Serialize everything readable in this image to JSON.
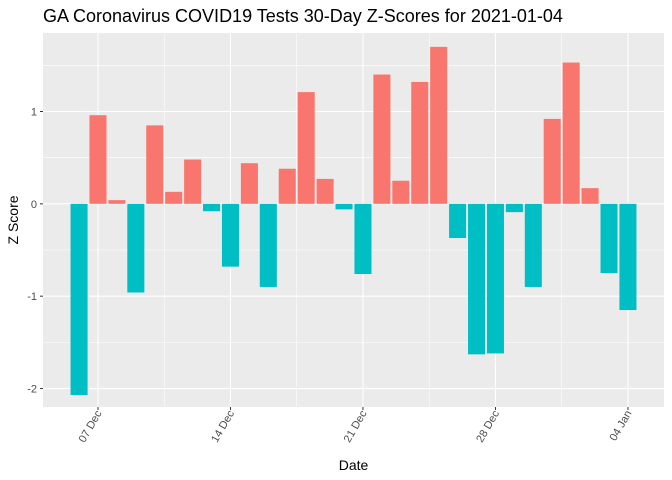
{
  "chart_data": {
    "type": "bar",
    "title": "GA Coronavirus COVID19 Tests 30-Day Z-Scores for 2021-01-04",
    "xlabel": "Date",
    "ylabel": "Z Score",
    "x": [
      "2020-12-06",
      "2020-12-07",
      "2020-12-08",
      "2020-12-09",
      "2020-12-10",
      "2020-12-11",
      "2020-12-12",
      "2020-12-13",
      "2020-12-14",
      "2020-12-15",
      "2020-12-16",
      "2020-12-17",
      "2020-12-18",
      "2020-12-19",
      "2020-12-20",
      "2020-12-21",
      "2020-12-22",
      "2020-12-23",
      "2020-12-24",
      "2020-12-25",
      "2020-12-26",
      "2020-12-27",
      "2020-12-28",
      "2020-12-29",
      "2020-12-30",
      "2020-12-31",
      "2021-01-01",
      "2021-01-02",
      "2021-01-03",
      "2021-01-04"
    ],
    "values": [
      -2.07,
      0.96,
      0.04,
      -0.96,
      0.85,
      0.13,
      0.48,
      -0.08,
      -0.68,
      0.44,
      -0.9,
      0.38,
      1.21,
      0.27,
      -0.06,
      -0.76,
      1.4,
      0.25,
      1.32,
      1.7,
      -0.37,
      -1.63,
      -1.62,
      -0.09,
      -0.9,
      0.92,
      1.53,
      0.17,
      -0.75,
      -1.15
    ],
    "x_ticks": [
      "07 Dec",
      "14 Dec",
      "21 Dec",
      "28 Dec",
      "04 Jan"
    ],
    "x_tick_dates": [
      "2020-12-07",
      "2020-12-14",
      "2020-12-21",
      "2020-12-28",
      "2021-01-04"
    ],
    "y_ticks": [
      "-2",
      "-1",
      "0",
      "1"
    ],
    "y_tick_values": [
      -2,
      -1,
      0,
      1
    ],
    "ylim": [
      -2.2,
      1.85
    ],
    "colors": {
      "positive": "#F8766D",
      "negative": "#00BFC4",
      "panel": "#EBEBEB",
      "grid": "#FFFFFF"
    },
    "grid": true,
    "legend": "none"
  }
}
